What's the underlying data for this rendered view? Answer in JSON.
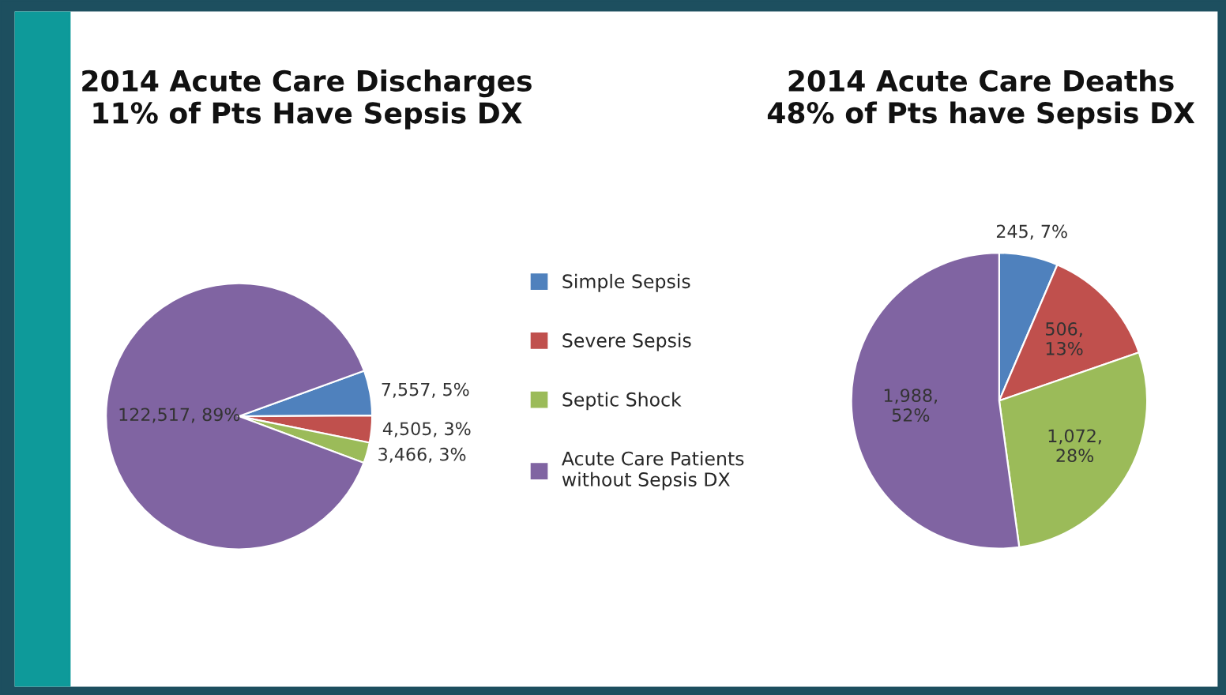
{
  "chart_data": [
    {
      "type": "pie",
      "title": "2014 Acute Care Discharges\n11% of Pts Have Sepsis DX",
      "categories": [
        "Simple Sepsis",
        "Severe Sepsis",
        "Septic Shock",
        "Acute Care Patients\nwithout Sepsis DX"
      ],
      "values": [
        7557,
        4505,
        3466,
        122517
      ],
      "colors": [
        "#4f81bd",
        "#c0504d",
        "#9bbb59",
        "#8064a2"
      ],
      "value_labels": [
        "7,557, 5%",
        "4,505, 3%",
        "3,466, 3%",
        "122,517, 89%"
      ],
      "legend": "right"
    },
    {
      "type": "pie",
      "title": "2014 Acute Care Deaths\n48% of Pts have Sepsis DX",
      "values": [
        245,
        506,
        1072,
        1988
      ],
      "colors": [
        "#4f81bd",
        "#c0504d",
        "#9bbb59",
        "#8064a2"
      ],
      "value_labels": [
        "245, 7%",
        "506,\n13%",
        "1,072,\n28%",
        "1,988,\n52%"
      ]
    }
  ]
}
